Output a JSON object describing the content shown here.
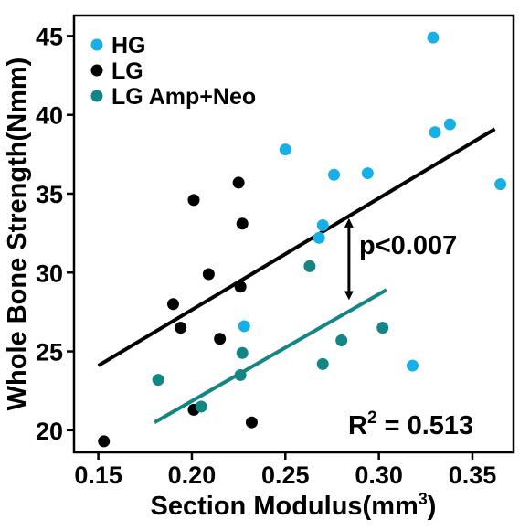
{
  "chart_data": {
    "type": "scatter",
    "title": "",
    "xlabel": "Section Modulus(mm",
    "xlabel_sup": "3",
    "xlabel_tail": ")",
    "ylabel": "Whole Bone Strength(Nmm)",
    "xlim": [
      0.137,
      0.372
    ],
    "ylim": [
      18.6,
      46.3
    ],
    "xticks": [
      0.15,
      0.2,
      0.25,
      0.3,
      0.35
    ],
    "xtick_labels": [
      "0.15",
      "0.20",
      "0.25",
      "0.30",
      "0.35"
    ],
    "yticks": [
      20,
      25,
      30,
      35,
      40,
      45
    ],
    "ytick_labels": [
      "20",
      "25",
      "30",
      "35",
      "40",
      "45"
    ],
    "grid": false,
    "legend_position": "top-left",
    "series": [
      {
        "name": "HG",
        "color": "#18aee6",
        "points": [
          [
            0.329,
            44.9
          ],
          [
            0.33,
            38.9
          ],
          [
            0.338,
            39.4
          ],
          [
            0.25,
            37.8
          ],
          [
            0.276,
            36.2
          ],
          [
            0.294,
            36.3
          ],
          [
            0.365,
            35.6
          ],
          [
            0.27,
            33.0
          ],
          [
            0.268,
            32.2
          ],
          [
            0.228,
            26.6
          ],
          [
            0.318,
            24.1
          ]
        ]
      },
      {
        "name": "LG",
        "color": "#000000",
        "points": [
          [
            0.225,
            35.7
          ],
          [
            0.201,
            34.6
          ],
          [
            0.227,
            33.1
          ],
          [
            0.209,
            29.9
          ],
          [
            0.226,
            29.1
          ],
          [
            0.19,
            28.0
          ],
          [
            0.194,
            26.5
          ],
          [
            0.215,
            25.8
          ],
          [
            0.201,
            21.3
          ],
          [
            0.232,
            20.5
          ],
          [
            0.153,
            19.3
          ]
        ]
      },
      {
        "name": "LG Amp+Neo",
        "color": "#138585",
        "points": [
          [
            0.263,
            30.4
          ],
          [
            0.302,
            26.5
          ],
          [
            0.28,
            25.7
          ],
          [
            0.227,
            24.9
          ],
          [
            0.27,
            24.2
          ],
          [
            0.226,
            23.5
          ],
          [
            0.182,
            23.2
          ],
          [
            0.205,
            21.5
          ]
        ]
      }
    ],
    "fit_lines": [
      {
        "series": "HG/LG",
        "color": "#000000",
        "x": [
          0.15,
          0.362
        ],
        "y": [
          24.1,
          39.1
        ]
      },
      {
        "series": "LG Amp+Neo",
        "color": "#138585",
        "x": [
          0.18,
          0.304
        ],
        "y": [
          20.5,
          28.9
        ]
      }
    ],
    "annotations": {
      "p_value": "p<0.007",
      "r2_prefix": "R",
      "r2_sup": "2",
      "r2_value": " = 0.513",
      "arrow": {
        "x": 0.284,
        "y_top": 33.5,
        "y_bottom": 28.2
      }
    }
  }
}
